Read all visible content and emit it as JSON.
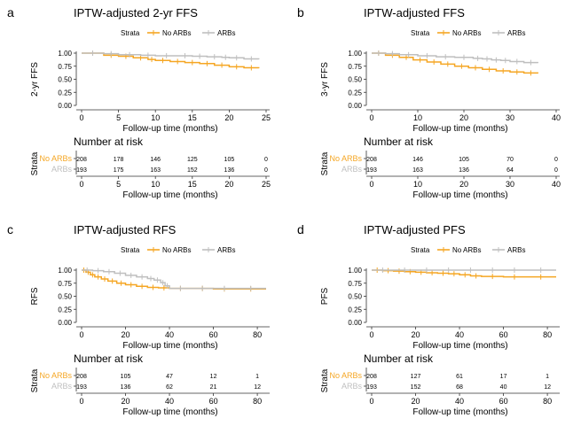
{
  "colors": {
    "no_arbs": "#F5A623",
    "arbs": "#BFBFBF",
    "axis": "#333333",
    "text": "#000000"
  },
  "chart_data": [
    {
      "panel_letter": "a",
      "type": "line",
      "title": "IPTW-adjusted 2-yr FFS",
      "ylabel": "2-yr FFS",
      "xlabel": "Follow-up time (months)",
      "legend_title": "Strata",
      "xlim": [
        0,
        25
      ],
      "x_ticks": [
        0,
        5,
        10,
        15,
        20,
        25
      ],
      "ylim": [
        0,
        1
      ],
      "y_ticks": [
        "0.00",
        "0.25",
        "0.50",
        "0.75",
        "1.00"
      ],
      "series": [
        {
          "name": "No ARBs",
          "color_key": "no_arbs",
          "x": [
            0,
            3,
            5,
            7,
            9,
            10,
            12,
            14,
            16,
            18,
            20,
            22,
            24
          ],
          "y": [
            1.0,
            0.96,
            0.94,
            0.91,
            0.88,
            0.86,
            0.84,
            0.82,
            0.8,
            0.77,
            0.74,
            0.72,
            0.71
          ]
        },
        {
          "name": "ARBs",
          "color_key": "arbs",
          "x": [
            0,
            3,
            5,
            8,
            10,
            13,
            15,
            17,
            19,
            20,
            22,
            24
          ],
          "y": [
            1.0,
            0.99,
            0.97,
            0.96,
            0.95,
            0.95,
            0.94,
            0.93,
            0.92,
            0.91,
            0.89,
            0.88
          ]
        }
      ],
      "risk_table": {
        "title": "Number at risk",
        "ylabel": "Strata",
        "xlabel": "Follow-up time (months)",
        "times": [
          0,
          5,
          10,
          15,
          20,
          25
        ],
        "rows": [
          {
            "label": "No ARBs",
            "color_key": "no_arbs",
            "values": [
              "208",
              "178",
              "146",
              "125",
              "105",
              "0"
            ]
          },
          {
            "label": "ARBs",
            "color_key": "arbs",
            "values": [
              "193",
              "175",
              "163",
              "152",
              "136",
              "0"
            ]
          }
        ]
      }
    },
    {
      "panel_letter": "b",
      "type": "line",
      "title": "IPTW-adjusted FFS",
      "ylabel": "3-yr FFS",
      "xlabel": "Follow-up time (months)",
      "legend_title": "Strata",
      "xlim": [
        0,
        40
      ],
      "x_ticks": [
        0,
        10,
        20,
        30,
        40
      ],
      "ylim": [
        0,
        1
      ],
      "y_ticks": [
        "0.00",
        "0.25",
        "0.50",
        "0.75",
        "1.00"
      ],
      "series": [
        {
          "name": "No ARBs",
          "color_key": "no_arbs",
          "x": [
            0,
            3,
            6,
            9,
            12,
            15,
            18,
            21,
            24,
            27,
            30,
            33,
            36
          ],
          "y": [
            1.0,
            0.96,
            0.92,
            0.87,
            0.83,
            0.79,
            0.75,
            0.72,
            0.69,
            0.66,
            0.64,
            0.62,
            0.61
          ]
        },
        {
          "name": "ARBs",
          "color_key": "arbs",
          "x": [
            0,
            3,
            6,
            10,
            14,
            18,
            22,
            24,
            26,
            28,
            30,
            33,
            36
          ],
          "y": [
            1.0,
            0.99,
            0.97,
            0.95,
            0.93,
            0.92,
            0.9,
            0.89,
            0.87,
            0.86,
            0.84,
            0.82,
            0.81
          ]
        }
      ],
      "risk_table": {
        "title": "Number at risk",
        "ylabel": "Strata",
        "xlabel": "Follow-up time (months)",
        "times": [
          0,
          10,
          20,
          30,
          40
        ],
        "rows": [
          {
            "label": "No ARBs",
            "color_key": "no_arbs",
            "values": [
              "208",
              "146",
              "105",
              "70",
              "0"
            ]
          },
          {
            "label": "ARBs",
            "color_key": "arbs",
            "values": [
              "193",
              "163",
              "136",
              "64",
              "0"
            ]
          }
        ]
      }
    },
    {
      "panel_letter": "c",
      "type": "line",
      "title": "IPTW-adjusted RFS",
      "ylabel": "RFS",
      "xlabel": "Follow-up time (months)",
      "legend_title": "Strata",
      "xlim": [
        0,
        84
      ],
      "x_ticks": [
        0,
        20,
        40,
        60,
        80
      ],
      "ylim": [
        0,
        1
      ],
      "y_ticks": [
        "0.00",
        "0.25",
        "0.50",
        "0.75",
        "1.00"
      ],
      "series": [
        {
          "name": "No ARBs",
          "color_key": "no_arbs",
          "x": [
            0,
            2,
            4,
            6,
            9,
            12,
            16,
            20,
            25,
            30,
            35,
            40,
            50,
            60,
            70,
            84
          ],
          "y": [
            1.0,
            0.96,
            0.91,
            0.87,
            0.83,
            0.79,
            0.75,
            0.72,
            0.69,
            0.67,
            0.66,
            0.65,
            0.65,
            0.64,
            0.64,
            0.64
          ]
        },
        {
          "name": "ARBs",
          "color_key": "arbs",
          "x": [
            0,
            5,
            10,
            15,
            20,
            25,
            30,
            33,
            36,
            38,
            40,
            50,
            60,
            70,
            84
          ],
          "y": [
            1.0,
            0.99,
            0.97,
            0.94,
            0.9,
            0.87,
            0.84,
            0.81,
            0.76,
            0.7,
            0.65,
            0.65,
            0.65,
            0.65,
            0.65
          ]
        }
      ],
      "risk_table": {
        "title": "Number at risk",
        "ylabel": "Strata",
        "xlabel": "Follow-up time (months)",
        "times": [
          0,
          20,
          40,
          60,
          80
        ],
        "rows": [
          {
            "label": "No ARBs",
            "color_key": "no_arbs",
            "values": [
              "208",
              "105",
              "47",
              "12",
              "1"
            ]
          },
          {
            "label": "ARBs",
            "color_key": "arbs",
            "values": [
              "193",
              "136",
              "62",
              "21",
              "12"
            ]
          }
        ]
      }
    },
    {
      "panel_letter": "d",
      "type": "line",
      "title": "IPTW-adjusted PFS",
      "ylabel": "PFS",
      "xlabel": "Follow-up time (months)",
      "legend_title": "Strata",
      "xlim": [
        0,
        84
      ],
      "x_ticks": [
        0,
        20,
        40,
        60,
        80
      ],
      "ylim": [
        0,
        1
      ],
      "y_ticks": [
        "0.00",
        "0.25",
        "0.50",
        "0.75",
        "1.00"
      ],
      "series": [
        {
          "name": "No ARBs",
          "color_key": "no_arbs",
          "x": [
            0,
            5,
            10,
            15,
            20,
            25,
            30,
            35,
            40,
            45,
            50,
            60,
            70,
            84
          ],
          "y": [
            1.0,
            0.99,
            0.98,
            0.97,
            0.96,
            0.95,
            0.94,
            0.93,
            0.91,
            0.89,
            0.88,
            0.87,
            0.87,
            0.87
          ]
        },
        {
          "name": "ARBs",
          "color_key": "arbs",
          "x": [
            0,
            10,
            20,
            30,
            40,
            50,
            60,
            70,
            84
          ],
          "y": [
            1.0,
            1.0,
            1.0,
            1.0,
            1.0,
            1.0,
            1.0,
            1.0,
            1.0
          ]
        }
      ],
      "risk_table": {
        "title": "Number at risk",
        "ylabel": "Strata",
        "xlabel": "Follow-up time (months)",
        "times": [
          0,
          20,
          40,
          60,
          80
        ],
        "rows": [
          {
            "label": "No ARBs",
            "color_key": "no_arbs",
            "values": [
              "208",
              "127",
              "61",
              "17",
              "1"
            ]
          },
          {
            "label": "ARBs",
            "color_key": "arbs",
            "values": [
              "193",
              "152",
              "68",
              "40",
              "12"
            ]
          }
        ]
      }
    }
  ]
}
